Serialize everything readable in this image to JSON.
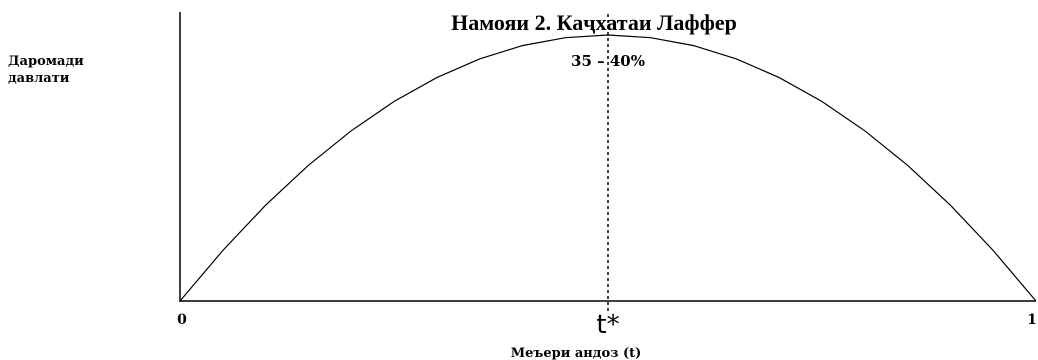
{
  "chart_data": {
    "type": "line",
    "title": "Намояи 2. Каҷхатаи Лаффер",
    "ylabel_lines": [
      "Даромади",
      "давлати"
    ],
    "xlabel": "Меъери андоз (t)",
    "x_ticks": [
      {
        "x": 0,
        "label": "0"
      },
      {
        "x": 0.5,
        "label": "t*"
      },
      {
        "x": 1,
        "label": "1"
      }
    ],
    "xlim": [
      0,
      1
    ],
    "ylim": [
      0,
      1
    ],
    "grid": false,
    "legend": false,
    "optimum": {
      "x": 0.5,
      "label": "35 – 40%",
      "line_style": "dotted"
    },
    "series": [
      {
        "x": [
          0,
          0.05,
          0.1,
          0.15,
          0.2,
          0.25,
          0.3,
          0.35,
          0.4,
          0.45,
          0.5,
          0.55,
          0.6,
          0.65,
          0.7,
          0.75,
          0.8,
          0.85,
          0.9,
          0.95,
          1
        ],
        "values": [
          0,
          0.19,
          0.36,
          0.51,
          0.64,
          0.75,
          0.84,
          0.91,
          0.96,
          0.99,
          1,
          0.99,
          0.96,
          0.91,
          0.84,
          0.75,
          0.64,
          0.51,
          0.36,
          0.19,
          0
        ],
        "color": "#000000"
      }
    ]
  }
}
